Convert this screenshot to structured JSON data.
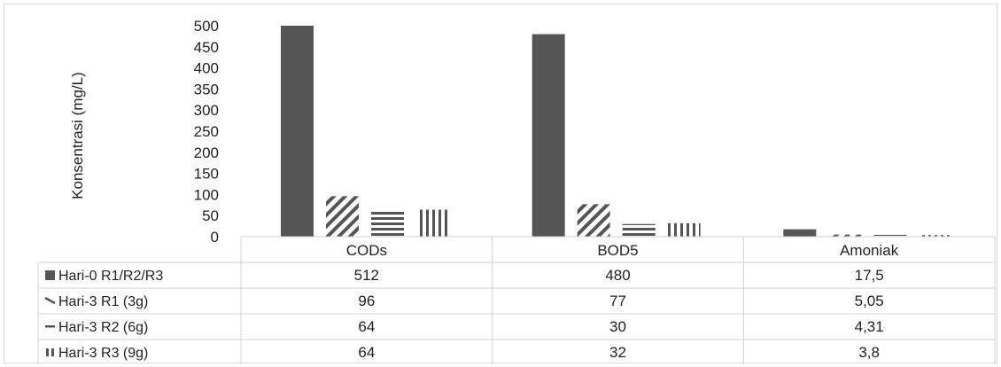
{
  "chart_data": {
    "type": "bar",
    "ylabel": "Konsentrasi (mg/L)",
    "ylim": [
      0,
      500
    ],
    "yticks": [
      0,
      50,
      100,
      150,
      200,
      250,
      300,
      350,
      400,
      450,
      500
    ],
    "categories": [
      "CODs",
      "BOD5",
      "Amoniak"
    ],
    "series": [
      {
        "name": "Hari-0 R1/R2/R3",
        "pattern": "solid",
        "values": [
          512,
          480,
          17.5
        ],
        "labels": [
          "512",
          "480",
          "17,5"
        ]
      },
      {
        "name": "Hari-3 R1 (3g)",
        "pattern": "diagonal",
        "values": [
          96,
          77,
          5.05
        ],
        "labels": [
          "96",
          "77",
          "5,05"
        ]
      },
      {
        "name": "Hari-3 R2 (6g)",
        "pattern": "horizontal",
        "values": [
          64,
          30,
          4.31
        ],
        "labels": [
          "64",
          "30",
          "4,31"
        ]
      },
      {
        "name": "Hari-3 R3 (9g)",
        "pattern": "vertical",
        "values": [
          64,
          32,
          3.8
        ],
        "labels": [
          "64",
          "32",
          "3,8"
        ]
      }
    ],
    "grid": false,
    "legend": "data-table",
    "colors": {
      "bar": "#555555",
      "border": "#d0d0d0"
    }
  }
}
